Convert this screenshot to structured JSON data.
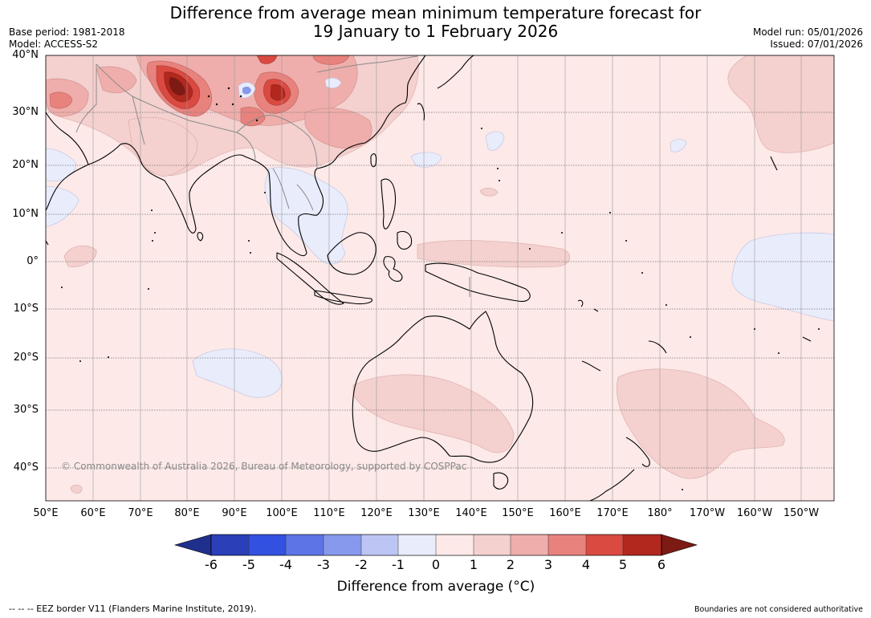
{
  "header": {
    "title_line1": "Difference from average mean minimum temperature forecast for",
    "title_line2": "19 January to 1 February 2026",
    "base_period": "Base period: 1981-2018",
    "model": "Model: ACCESS-S2",
    "model_run": "Model run: 05/01/2026",
    "issued": "Issued: 07/01/2026"
  },
  "map": {
    "lat_labels": [
      "40°N",
      "30°N",
      "20°N",
      "10°N",
      "0°",
      "10°S",
      "20°S",
      "30°S",
      "40°S"
    ],
    "lon_labels": [
      "50°E",
      "60°E",
      "70°E",
      "80°E",
      "90°E",
      "100°E",
      "110°E",
      "120°E",
      "130°E",
      "140°E",
      "150°E",
      "160°E",
      "170°E",
      "180°",
      "170°W",
      "160°W",
      "150°W"
    ],
    "copyright": "© Commonwealth of Australia 2026, Bureau of Meteorology, supported by COSPPac"
  },
  "colorbar": {
    "ticks": [
      "-6",
      "-5",
      "-4",
      "-3",
      "-2",
      "-1",
      "0",
      "1",
      "2",
      "3",
      "4",
      "5",
      "6"
    ],
    "colors": [
      "#1f2f8c",
      "#2a3fb8",
      "#3351e0",
      "#5c74e6",
      "#8799ec",
      "#bcc5f4",
      "#e9ecfb",
      "#fce9e8",
      "#f4d0cf",
      "#efaeab",
      "#e8827d",
      "#da4a41",
      "#b2281f",
      "#7d1a14"
    ],
    "label": "Difference from average (°C)"
  },
  "footer": {
    "eez_note": "--  --  -- EEZ border V11 (Flanders Marine Institute, 2019).",
    "boundaries_note": "Boundaries are not considered authoritative"
  }
}
